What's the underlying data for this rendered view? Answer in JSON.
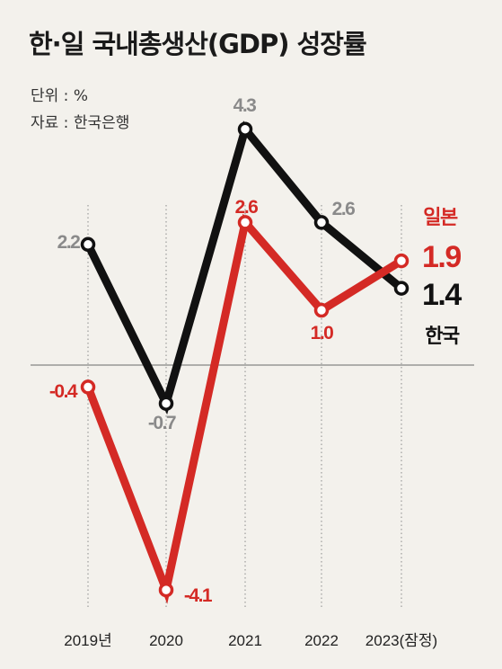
{
  "title": "한·일 국내총생산(GDP) 성장률",
  "unit_label": "단위 : %",
  "source_label": "자료 : 한국은행",
  "chart_data": {
    "type": "line",
    "categories": [
      "2019년",
      "2020",
      "2021",
      "2022",
      "2023(잠정)"
    ],
    "ylim": [
      -4.5,
      4.6
    ],
    "grid": false,
    "baseline": 0,
    "legend": "direct-labels-right",
    "series": [
      {
        "name": "한국",
        "color": "#111111",
        "values": [
          2.2,
          -0.7,
          4.3,
          2.6,
          1.4
        ],
        "labels": [
          "2.2",
          "-0.7",
          "4.3",
          "2.6",
          "1.4"
        ]
      },
      {
        "name": "일본",
        "color": "#d42a25",
        "values": [
          -0.4,
          -4.1,
          2.6,
          1.0,
          1.9
        ],
        "labels": [
          "-0.4",
          "-4.1",
          "2.6",
          "1.0",
          "1.9"
        ]
      }
    ]
  }
}
